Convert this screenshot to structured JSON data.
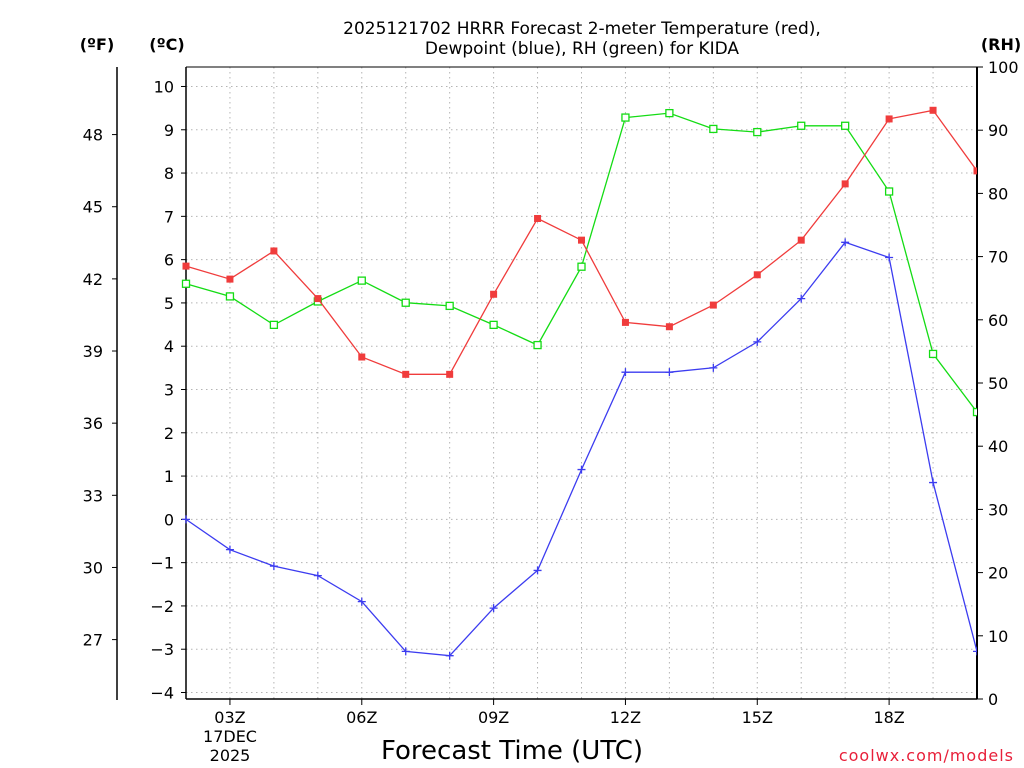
{
  "chart_data": {
    "type": "line",
    "title_line1": "2025121702 HRRR Forecast 2-meter Temperature (red),",
    "title_line2": "Dewpoint (blue), RH (green) for KIDA",
    "xlabel": "Forecast Time (UTC)",
    "date_line1": "17DEC",
    "date_line2": "2025",
    "credit": "coolwx.com/models",
    "unit_f": "(ºF)",
    "unit_c": "(ºC)",
    "unit_rh": "(RH)",
    "x_hours": [
      2,
      3,
      4,
      5,
      6,
      7,
      8,
      9,
      10,
      11,
      12,
      13,
      14,
      15,
      16,
      17,
      18,
      19,
      20
    ],
    "xlim": [
      2,
      20
    ],
    "x_ticks": [
      {
        "hour": 3,
        "label": "03Z"
      },
      {
        "hour": 6,
        "label": "06Z"
      },
      {
        "hour": 9,
        "label": "09Z"
      },
      {
        "hour": 12,
        "label": "12Z"
      },
      {
        "hour": 15,
        "label": "15Z"
      },
      {
        "hour": 18,
        "label": "18Z"
      }
    ],
    "ylim_c": [
      -4.15,
      10.45
    ],
    "y_ticks_c": [
      "10",
      "9",
      "8",
      "7",
      "6",
      "5",
      "4",
      "3",
      "2",
      "1",
      "0",
      "−1",
      "−2",
      "−3",
      "−4"
    ],
    "y_tick_values_c": [
      10,
      9,
      8,
      7,
      6,
      5,
      4,
      3,
      2,
      1,
      0,
      -1,
      -2,
      -3,
      -4
    ],
    "y_ticks_f": [
      "48",
      "45",
      "42",
      "39",
      "36",
      "33",
      "30",
      "27"
    ],
    "y_tick_values_f": [
      48,
      45,
      42,
      39,
      36,
      33,
      30,
      27
    ],
    "ylim_rh": [
      0,
      100
    ],
    "y_ticks_rh": [
      "100",
      "90",
      "80",
      "70",
      "60",
      "50",
      "40",
      "30",
      "20",
      "10",
      "0"
    ],
    "y_tick_values_rh": [
      100,
      90,
      80,
      70,
      60,
      50,
      40,
      30,
      20,
      10,
      0
    ],
    "series": [
      {
        "name": "Temperature",
        "axis": "c",
        "color": "#f03c3c",
        "marker": "filled-square",
        "values": [
          5.85,
          5.55,
          6.2,
          5.1,
          3.75,
          3.35,
          3.35,
          5.2,
          6.95,
          6.45,
          4.55,
          4.45,
          4.95,
          5.65,
          6.45,
          7.75,
          9.25,
          9.45,
          8.05
        ]
      },
      {
        "name": "Dewpoint",
        "axis": "c",
        "color": "#3c3cf0",
        "marker": "plus",
        "values": [
          0.0,
          -0.7,
          -1.08,
          -1.3,
          -1.9,
          -3.05,
          -3.15,
          -2.05,
          -1.18,
          1.15,
          3.4,
          3.4,
          3.5,
          4.1,
          5.1,
          6.4,
          6.05,
          0.85,
          -3.05
        ]
      },
      {
        "name": "RH",
        "axis": "rh",
        "color": "#14dc14",
        "marker": "open-square",
        "values": [
          65.7,
          63.7,
          59.2,
          62.9,
          66.2,
          62.7,
          62.2,
          59.2,
          56.0,
          68.4,
          92.0,
          92.7,
          90.2,
          89.7,
          90.7,
          90.7,
          80.3,
          54.6,
          45.4
        ]
      }
    ]
  }
}
